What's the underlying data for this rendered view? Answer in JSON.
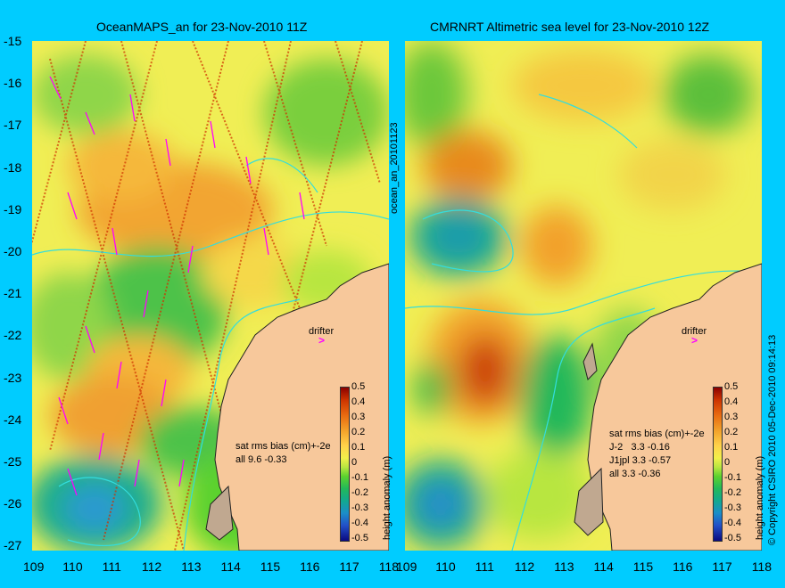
{
  "left_map": {
    "title": "OceanMAPS_an for 23-Nov-2010 11Z",
    "side_label": "ocean_an_20101123",
    "stats": "sat rms bias (cm)+-2e\nall 9.6 -0.33",
    "drifter_label": "drifter"
  },
  "right_map": {
    "title": "CMRNRT Altimetric sea level  for 23-Nov-2010 12Z",
    "stats": "sat rms bias (cm)+-2e\nJ-2   3.3 -0.16\nJ1jpl 3.3 -0.57\nall 3.3 -0.36",
    "drifter_label": "drifter",
    "copyright": "© Copyright CSIRO 2010   05-Dec-2010 09:14:13"
  },
  "axes": {
    "y_ticks": [
      "-15",
      "-16",
      "-17",
      "-18",
      "-19",
      "-20",
      "-21",
      "-22",
      "-23",
      "-24",
      "-25",
      "-26",
      "-27"
    ],
    "x_ticks": [
      "109",
      "110",
      "111",
      "112",
      "113",
      "114",
      "115",
      "116",
      "117",
      "118"
    ]
  },
  "colorbar": {
    "label": "height anomaly (m)",
    "ticks": [
      "0.5",
      "0.4",
      "0.3",
      "0.2",
      "0.1",
      "0",
      "-0.1",
      "-0.2",
      "-0.3",
      "-0.4",
      "-0.5"
    ]
  },
  "colors": {
    "background": "#00ccff",
    "land": "#f7c89b",
    "drifter_arrow": "#ff00ff"
  }
}
